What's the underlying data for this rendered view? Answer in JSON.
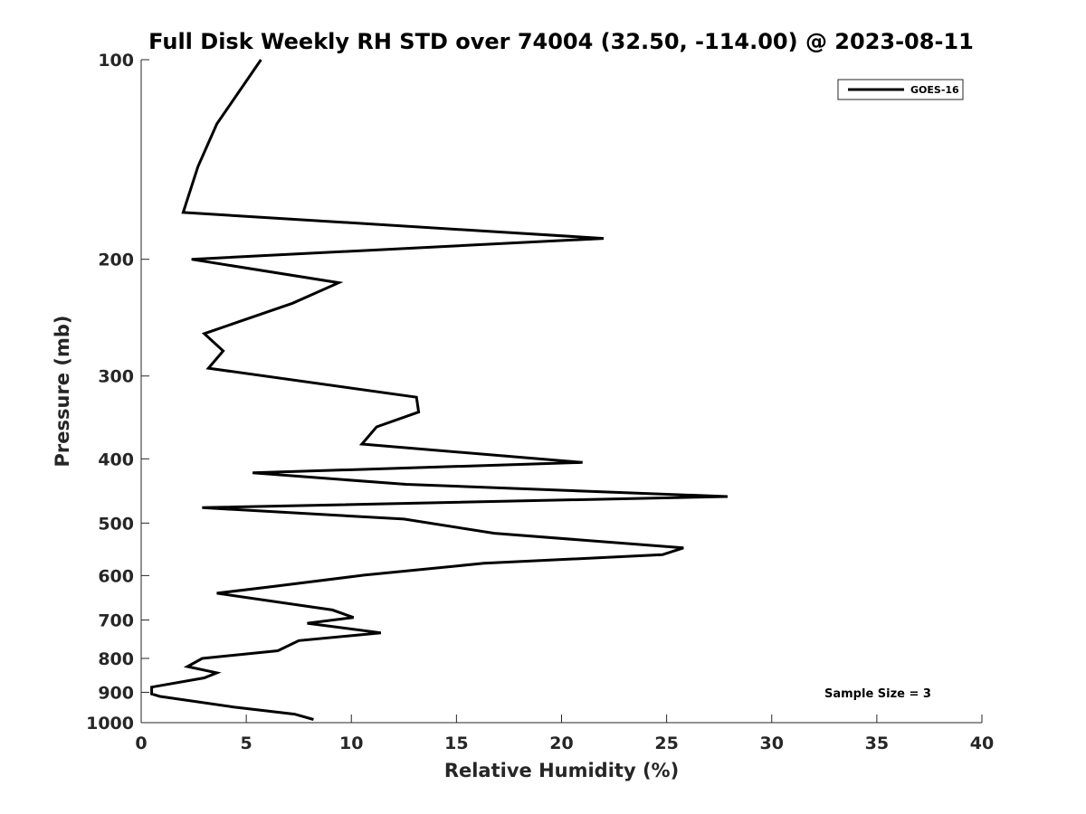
{
  "chart_data": {
    "type": "line",
    "title": "Full Disk Weekly RH STD over 74004 (32.50, -114.00) @ 2023-08-11",
    "xlabel": "Relative Humidity (%)",
    "ylabel": "Pressure (mb)",
    "xlim": [
      0,
      40
    ],
    "ylim": [
      100,
      1000
    ],
    "y_scale": "log",
    "y_reversed": true,
    "x_ticks": [
      0,
      5,
      10,
      15,
      20,
      25,
      30,
      35,
      40
    ],
    "x_tick_labels": [
      "0",
      "5",
      "10",
      "15",
      "20",
      "25",
      "30",
      "35",
      "40"
    ],
    "y_ticks": [
      100,
      200,
      300,
      400,
      500,
      600,
      700,
      800,
      900,
      1000
    ],
    "y_tick_labels": [
      "100",
      "200",
      "300",
      "400",
      "500",
      "600",
      "700",
      "800",
      "900",
      "1000"
    ],
    "grid": false,
    "legend_position": "top-right",
    "annotation": "Sample Size = 3",
    "series": [
      {
        "name": "GOES-16",
        "color": "#000000",
        "points": [
          [
            5.7,
            100
          ],
          [
            3.6,
            125
          ],
          [
            2.7,
            145
          ],
          [
            2.0,
            170
          ],
          [
            22.0,
            186
          ],
          [
            2.4,
            200
          ],
          [
            9.4,
            217
          ],
          [
            7.2,
            233
          ],
          [
            3.0,
            259
          ],
          [
            3.9,
            275
          ],
          [
            3.2,
            292
          ],
          [
            13.1,
            323
          ],
          [
            13.2,
            340
          ],
          [
            11.2,
            358
          ],
          [
            10.5,
            380
          ],
          [
            21.0,
            405
          ],
          [
            5.3,
            420
          ],
          [
            12.6,
            437
          ],
          [
            27.9,
            456
          ],
          [
            2.9,
            474
          ],
          [
            12.5,
            493
          ],
          [
            16.8,
            518
          ],
          [
            25.8,
            545
          ],
          [
            24.8,
            558
          ],
          [
            16.3,
            575
          ],
          [
            10.6,
            599
          ],
          [
            6.3,
            623
          ],
          [
            3.6,
            638
          ],
          [
            9.1,
            676
          ],
          [
            10.1,
            694
          ],
          [
            7.9,
            708
          ],
          [
            11.4,
            732
          ],
          [
            7.5,
            752
          ],
          [
            6.5,
            779
          ],
          [
            2.9,
            800
          ],
          [
            2.2,
            823
          ],
          [
            3.6,
            841
          ],
          [
            3.0,
            856
          ],
          [
            0.5,
            884
          ],
          [
            0.5,
            905
          ],
          [
            0.9,
            913
          ],
          [
            4.4,
            947
          ],
          [
            7.3,
            971
          ],
          [
            8.2,
            989
          ]
        ]
      }
    ]
  }
}
